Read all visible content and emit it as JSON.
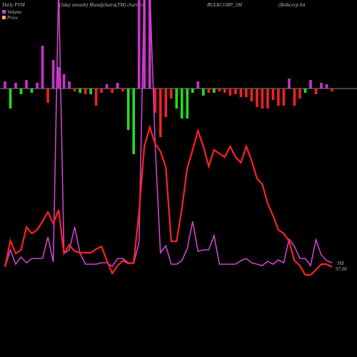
{
  "chart_data": {
    "type": "pvm",
    "titles": [
      "Daily PVM",
      "(5day smooth) MunafaSutra(TM) chart for",
      "BULKCORP_SM",
      "(Bulkcorp Int"
    ],
    "end_labels": [
      "SM",
      "97.00"
    ],
    "ylim": [
      0,
      400
    ],
    "series": [
      {
        "name": "Volume",
        "color": "#cc44cc",
        "values": [
          26,
          50,
          30,
          40,
          32,
          38,
          38,
          38,
          68,
          33,
          420,
          45,
          50,
          82,
          45,
          30,
          30,
          30,
          32,
          32,
          27,
          38,
          38,
          32,
          31,
          60,
          420,
          420,
          200,
          46,
          56,
          30,
          30,
          35,
          52,
          90,
          48,
          50,
          50,
          70,
          30,
          30,
          30,
          30,
          35,
          38,
          32,
          30,
          28,
          34,
          30,
          36,
          32,
          65,
          55,
          38,
          38,
          28,
          64,
          43,
          35,
          32
        ]
      },
      {
        "name": "Price",
        "color": "#ff2222",
        "values": [
          26,
          63,
          45,
          50,
          82,
          73,
          78,
          90,
          103,
          87,
          106,
          45,
          57,
          48,
          46,
          46,
          46,
          51,
          55,
          35,
          17,
          28,
          35,
          31,
          32,
          103,
          195,
          222,
          199,
          188,
          166,
          62,
          62,
          108,
          165,
          190,
          217,
          195,
          167,
          190,
          185,
          180,
          195,
          180,
          172,
          195,
          175,
          150,
          142,
          115,
          98,
          78,
          73,
          62,
          35,
          28,
          15,
          15,
          22,
          30,
          30,
          26
        ]
      }
    ],
    "histogram": {
      "values": [
        10,
        -28,
        8,
        -8,
        12,
        -6,
        8,
        60,
        -20,
        40,
        30,
        20,
        10,
        -4,
        -6,
        -8,
        -8,
        -24,
        -6,
        6,
        -6,
        8,
        -4,
        -58,
        -92,
        130,
        130,
        130,
        -34,
        -68,
        -40,
        -14,
        -28,
        -42,
        -42,
        -6,
        10,
        -10,
        -6,
        -6,
        -4,
        -6,
        -10,
        -8,
        -12,
        -12,
        -18,
        -26,
        -28,
        -28,
        -16,
        -24,
        -24,
        14,
        -24,
        -14,
        -6,
        12,
        -8,
        8,
        6,
        -4
      ],
      "colors": [
        "#cc33cc",
        "#22dd22",
        "#cc33cc",
        "#22dd22",
        "#cc33cc",
        "#22dd22",
        "#cc33cc",
        "#cc33cc",
        "#ee2222",
        "#cc33cc",
        "#cc33cc",
        "#cc33cc",
        "#cc33cc",
        "#ee2222",
        "#22dd22",
        "#ee2222",
        "#22dd22",
        "#ee2222",
        "#ee2222",
        "#cc33cc",
        "#ee2222",
        "#cc33cc",
        "#ee2222",
        "#22dd22",
        "#22dd22",
        "#cc33cc",
        "#cc33cc",
        "#cc33cc",
        "#ee2222",
        "#ee2222",
        "#ee2222",
        "#ee2222",
        "#22dd22",
        "#22dd22",
        "#22dd22",
        "#22dd22",
        "#cc33cc",
        "#22dd22",
        "#ee2222",
        "#22dd22",
        "#ee2222",
        "#ee2222",
        "#ee2222",
        "#ee2222",
        "#ee2222",
        "#ee2222",
        "#ee2222",
        "#ee2222",
        "#ee2222",
        "#ee2222",
        "#ee2222",
        "#ee2222",
        "#ee2222",
        "#cc33cc",
        "#ee2222",
        "#ee2222",
        "#22dd22",
        "#cc33cc",
        "#ee2222",
        "#cc33cc",
        "#cc33cc",
        "#ee2222"
      ]
    }
  }
}
